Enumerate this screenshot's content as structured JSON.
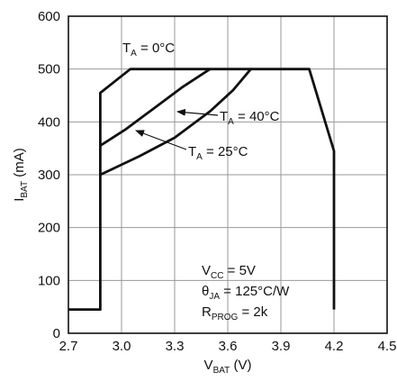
{
  "chart_data": {
    "type": "line",
    "title": "",
    "xlabel": {
      "main": "V",
      "sub": "BAT",
      "rest": " (V)"
    },
    "ylabel": {
      "main": "I",
      "sub": "BAT",
      "rest": " (mA)"
    },
    "xlim": [
      2.7,
      4.5
    ],
    "ylim": [
      0,
      600
    ],
    "x_ticks": [
      2.7,
      3.0,
      3.3,
      3.6,
      3.9,
      4.2,
      4.5
    ],
    "x_tick_labels": [
      "2.7",
      "3.0",
      "3.3",
      "3.6",
      "3.9",
      "4.2",
      "4.5"
    ],
    "y_ticks": [
      0,
      100,
      200,
      300,
      400,
      500,
      600
    ],
    "y_tick_labels": [
      "0",
      "100",
      "200",
      "300",
      "400",
      "500",
      "600"
    ],
    "grid": true,
    "series": [
      {
        "name": "T_A = 0°C",
        "points": [
          [
            2.7,
            45
          ],
          [
            2.88,
            45
          ],
          [
            2.88,
            455
          ],
          [
            3.05,
            500
          ],
          [
            4.06,
            500
          ],
          [
            4.2,
            345
          ],
          [
            4.2,
            45
          ]
        ]
      },
      {
        "name": "T_A = 25°C",
        "points": [
          [
            2.88,
            355
          ],
          [
            3.02,
            385
          ],
          [
            3.18,
            425
          ],
          [
            3.34,
            465
          ],
          [
            3.5,
            500
          ]
        ]
      },
      {
        "name": "T_A = 40°C",
        "points": [
          [
            2.88,
            300
          ],
          [
            3.1,
            335
          ],
          [
            3.3,
            370
          ],
          [
            3.5,
            420
          ],
          [
            3.63,
            460
          ],
          [
            3.73,
            500
          ]
        ]
      }
    ],
    "annotations": {
      "t0": {
        "pre": "T",
        "sub": "A",
        "post": " = 0°C"
      },
      "t40": {
        "pre": "T",
        "sub": "A",
        "post": " = 40°C"
      },
      "t25": {
        "pre": "T",
        "sub": "A",
        "post": " = 25°C"
      },
      "cond1": {
        "pre": "V",
        "sub": "CC",
        "post": " = 5V"
      },
      "cond2": {
        "pre": "θ",
        "sub": "JA",
        "post": " = 125°C/W"
      },
      "cond3": {
        "pre": "R",
        "sub": "PROG",
        "post": " = 2k"
      }
    }
  }
}
